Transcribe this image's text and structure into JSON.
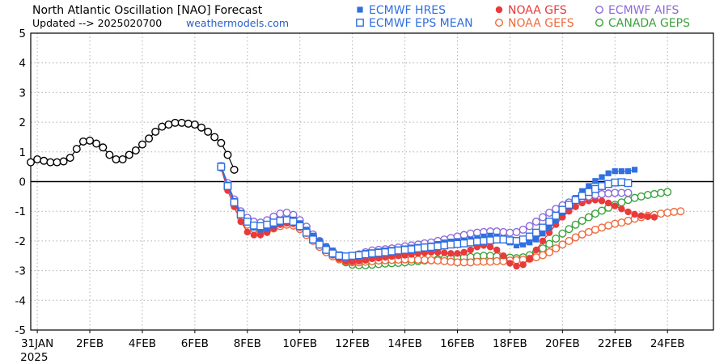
{
  "header": {
    "title": "North Atlantic Oscillation [NAO] Forecast",
    "updated_prefix": "Updated --> 2025020700",
    "source": "weathermodels.com"
  },
  "chart_data": {
    "type": "line",
    "title": "North Atlantic Oscillation [NAO] Forecast",
    "xlabel": "",
    "ylabel": "",
    "ylim": [
      -5,
      5
    ],
    "xlim": [
      "2025-01-30T18",
      "2025-02-25T18"
    ],
    "yticks": [
      "5",
      "4",
      "3",
      "2",
      "1",
      "0",
      "-1",
      "-2",
      "-3",
      "-4",
      "-5"
    ],
    "xticks": [
      {
        "date": "2025-01-31",
        "label": "31JAN",
        "label2": "2025"
      },
      {
        "date": "2025-02-02",
        "label": "2FEB"
      },
      {
        "date": "2025-02-04",
        "label": "4FEB"
      },
      {
        "date": "2025-02-06",
        "label": "6FEB"
      },
      {
        "date": "2025-02-08",
        "label": "8FEB"
      },
      {
        "date": "2025-02-10",
        "label": "10FEB"
      },
      {
        "date": "2025-02-12",
        "label": "12FEB"
      },
      {
        "date": "2025-02-14",
        "label": "14FEB"
      },
      {
        "date": "2025-02-16",
        "label": "16FEB"
      },
      {
        "date": "2025-02-18",
        "label": "18FEB"
      },
      {
        "date": "2025-02-20",
        "label": "20FEB"
      },
      {
        "date": "2025-02-22",
        "label": "22FEB"
      },
      {
        "date": "2025-02-24",
        "label": "24FEB"
      }
    ],
    "zero_line": true,
    "grid": "dotted",
    "legend_position": "top-right",
    "observed": {
      "name": "",
      "start": "2025-01-30T18",
      "step_hours": 6,
      "color": "#000000",
      "marker": "open-circle",
      "values": [
        0.65,
        0.75,
        0.7,
        0.65,
        0.65,
        0.68,
        0.8,
        1.1,
        1.35,
        1.38,
        1.28,
        1.15,
        0.9,
        0.75,
        0.75,
        0.9,
        1.05,
        1.25,
        1.45,
        1.68,
        1.85,
        1.92,
        1.98,
        1.98,
        1.95,
        1.92,
        1.82,
        1.68,
        1.5,
        1.3,
        0.9,
        0.4
      ]
    },
    "series": [
      {
        "name": "ECMWF HRES",
        "color": "#2f6fe0",
        "marker": "filled-square",
        "start": "2025-02-07T00",
        "step_hours": 6,
        "values": [
          0.55,
          -0.1,
          -0.65,
          -1.05,
          -1.35,
          -1.55,
          -1.62,
          -1.58,
          -1.48,
          -1.38,
          -1.32,
          -1.28,
          -1.4,
          -1.62,
          -1.82,
          -2.0,
          -2.18,
          -2.32,
          -2.45,
          -2.5,
          -2.5,
          -2.45,
          -2.4,
          -2.38,
          -2.35,
          -2.32,
          -2.3,
          -2.28,
          -2.25,
          -2.22,
          -2.2,
          -2.18,
          -2.15,
          -2.1,
          -2.05,
          -2.02,
          -2.0,
          -1.98,
          -1.95,
          -1.9,
          -1.85,
          -1.82,
          -1.85,
          -1.9,
          -2.05,
          -2.15,
          -2.12,
          -2.05,
          -1.95,
          -1.75,
          -1.55,
          -1.3,
          -1.05,
          -0.8,
          -0.55,
          -0.32,
          -0.15,
          0.02,
          0.15,
          0.28,
          0.35,
          0.35,
          0.35,
          0.4
        ]
      },
      {
        "name": "ECMWF EPS MEAN",
        "color": "#2f6fe0",
        "marker": "open-square",
        "start": "2025-02-07T00",
        "step_hours": 6,
        "values": [
          0.5,
          -0.15,
          -0.7,
          -1.1,
          -1.35,
          -1.48,
          -1.5,
          -1.45,
          -1.38,
          -1.32,
          -1.3,
          -1.35,
          -1.5,
          -1.72,
          -1.95,
          -2.12,
          -2.3,
          -2.42,
          -2.5,
          -2.52,
          -2.5,
          -2.48,
          -2.45,
          -2.42,
          -2.4,
          -2.38,
          -2.35,
          -2.32,
          -2.3,
          -2.28,
          -2.25,
          -2.22,
          -2.2,
          -2.18,
          -2.15,
          -2.12,
          -2.1,
          -2.08,
          -2.05,
          -2.02,
          -2.0,
          -1.98,
          -1.95,
          -1.95,
          -1.98,
          -2.0,
          -1.95,
          -1.85,
          -1.72,
          -1.55,
          -1.35,
          -1.15,
          -0.95,
          -0.78,
          -0.62,
          -0.48,
          -0.35,
          -0.25,
          -0.15,
          -0.08,
          -0.03,
          -0.02,
          -0.05
        ]
      },
      {
        "name": "NOAA GFS",
        "color": "#e83a3a",
        "marker": "filled-circle",
        "start": "2025-02-07T00",
        "step_hours": 6,
        "values": [
          0.45,
          -0.3,
          -0.85,
          -1.35,
          -1.7,
          -1.8,
          -1.8,
          -1.72,
          -1.58,
          -1.45,
          -1.4,
          -1.42,
          -1.55,
          -1.75,
          -1.95,
          -2.15,
          -2.32,
          -2.48,
          -2.6,
          -2.68,
          -2.7,
          -2.68,
          -2.65,
          -2.6,
          -2.58,
          -2.55,
          -2.52,
          -2.5,
          -2.48,
          -2.45,
          -2.42,
          -2.4,
          -2.38,
          -2.38,
          -2.4,
          -2.42,
          -2.42,
          -2.38,
          -2.3,
          -2.2,
          -2.15,
          -2.2,
          -2.3,
          -2.5,
          -2.75,
          -2.85,
          -2.8,
          -2.6,
          -2.3,
          -2.0,
          -1.72,
          -1.45,
          -1.2,
          -1.0,
          -0.85,
          -0.72,
          -0.65,
          -0.62,
          -0.65,
          -0.72,
          -0.82,
          -0.92,
          -1.02,
          -1.1,
          -1.15,
          -1.18,
          -1.2
        ]
      },
      {
        "name": "NOAA GEFS",
        "color": "#ef6a3c",
        "marker": "open-circle",
        "start": "2025-02-07T00",
        "step_hours": 6,
        "values": [
          0.48,
          -0.2,
          -0.75,
          -1.2,
          -1.45,
          -1.6,
          -1.68,
          -1.65,
          -1.58,
          -1.5,
          -1.45,
          -1.48,
          -1.6,
          -1.8,
          -2.0,
          -2.2,
          -2.38,
          -2.52,
          -2.62,
          -2.68,
          -2.72,
          -2.72,
          -2.7,
          -2.68,
          -2.66,
          -2.65,
          -2.64,
          -2.63,
          -2.62,
          -2.62,
          -2.63,
          -2.64,
          -2.65,
          -2.66,
          -2.68,
          -2.7,
          -2.72,
          -2.72,
          -2.72,
          -2.7,
          -2.7,
          -2.7,
          -2.68,
          -2.68,
          -2.66,
          -2.65,
          -2.63,
          -2.6,
          -2.55,
          -2.48,
          -2.38,
          -2.25,
          -2.12,
          -2.0,
          -1.88,
          -1.78,
          -1.7,
          -1.62,
          -1.55,
          -1.48,
          -1.42,
          -1.38,
          -1.32,
          -1.25,
          -1.2,
          -1.15,
          -1.12,
          -1.08,
          -1.05,
          -1.02,
          -1.0
        ]
      },
      {
        "name": "ECMWF AIFS",
        "color": "#8b6ad8",
        "marker": "open-circle",
        "start": "2025-02-07T00",
        "step_hours": 6,
        "values": [
          0.52,
          -0.05,
          -0.6,
          -1.0,
          -1.22,
          -1.35,
          -1.38,
          -1.3,
          -1.18,
          -1.08,
          -1.05,
          -1.12,
          -1.3,
          -1.52,
          -1.78,
          -2.0,
          -2.2,
          -2.38,
          -2.5,
          -2.55,
          -2.52,
          -2.45,
          -2.38,
          -2.32,
          -2.3,
          -2.28,
          -2.25,
          -2.22,
          -2.18,
          -2.15,
          -2.12,
          -2.08,
          -2.05,
          -2.0,
          -1.95,
          -1.9,
          -1.85,
          -1.8,
          -1.75,
          -1.72,
          -1.7,
          -1.68,
          -1.68,
          -1.7,
          -1.72,
          -1.7,
          -1.62,
          -1.5,
          -1.35,
          -1.2,
          -1.05,
          -0.92,
          -0.8,
          -0.7,
          -0.62,
          -0.55,
          -0.5,
          -0.45,
          -0.42,
          -0.4,
          -0.38,
          -0.38,
          -0.38
        ]
      },
      {
        "name": "CANADA GEPS",
        "color": "#3aa23a",
        "marker": "open-circle",
        "start": "2025-02-07T00",
        "step_hours": 6,
        "values": [
          0.5,
          -0.12,
          -0.68,
          -1.12,
          -1.42,
          -1.58,
          -1.65,
          -1.62,
          -1.55,
          -1.45,
          -1.38,
          -1.38,
          -1.48,
          -1.65,
          -1.85,
          -2.05,
          -2.25,
          -2.45,
          -2.6,
          -2.72,
          -2.8,
          -2.82,
          -2.82,
          -2.8,
          -2.78,
          -2.76,
          -2.75,
          -2.74,
          -2.72,
          -2.7,
          -2.68,
          -2.66,
          -2.65,
          -2.62,
          -2.6,
          -2.58,
          -2.56,
          -2.55,
          -2.54,
          -2.52,
          -2.5,
          -2.5,
          -2.52,
          -2.55,
          -2.56,
          -2.58,
          -2.55,
          -2.48,
          -2.38,
          -2.25,
          -2.1,
          -1.92,
          -1.75,
          -1.6,
          -1.45,
          -1.32,
          -1.2,
          -1.08,
          -0.98,
          -0.88,
          -0.78,
          -0.7,
          -0.62,
          -0.55,
          -0.5,
          -0.45,
          -0.42,
          -0.38,
          -0.35
        ]
      }
    ]
  },
  "legend": {
    "items": [
      {
        "name": "ECMWF HRES",
        "color": "#2f6fe0",
        "marker": "filled-square"
      },
      {
        "name": "NOAA GFS",
        "color": "#e83a3a",
        "marker": "filled-circle"
      },
      {
        "name": "ECMWF AIFS",
        "color": "#8b6ad8",
        "marker": "open-circle"
      },
      {
        "name": "ECMWF EPS MEAN",
        "color": "#2f6fe0",
        "marker": "open-square"
      },
      {
        "name": "NOAA GEFS",
        "color": "#ef6a3c",
        "marker": "open-circle"
      },
      {
        "name": "CANADA GEPS",
        "color": "#3aa23a",
        "marker": "open-circle"
      }
    ]
  }
}
